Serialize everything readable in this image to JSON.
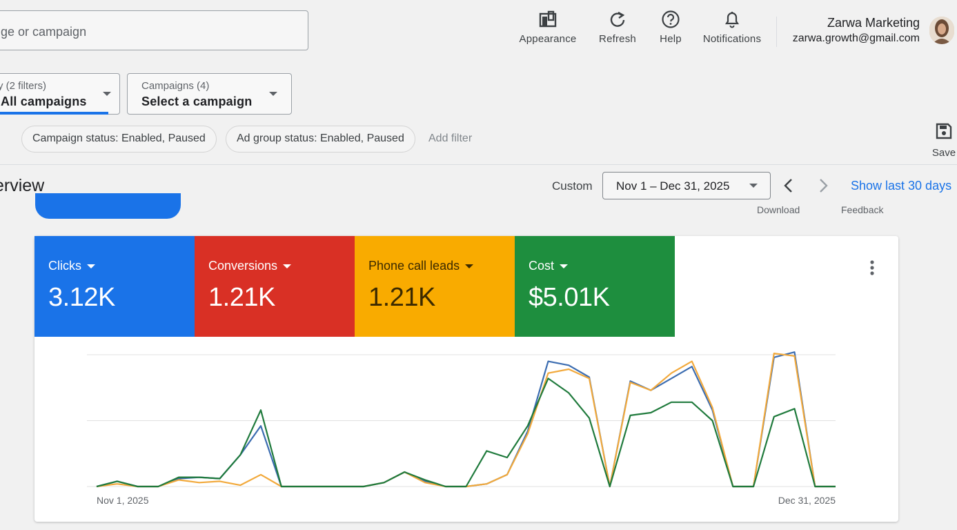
{
  "search": {
    "placeholder_visible": "ge or campaign"
  },
  "toolbar": [
    {
      "label": "Appearance",
      "icon": "appearance-icon"
    },
    {
      "label": "Refresh",
      "icon": "refresh-icon"
    },
    {
      "label": "Help",
      "icon": "help-icon"
    },
    {
      "label": "Notifications",
      "icon": "bell-icon"
    }
  ],
  "account": {
    "name": "Zarwa Marketing",
    "email": "zarwa.growth@gmail.com"
  },
  "filters": {
    "view": {
      "title": "y (2 filters)",
      "value": "All campaigns"
    },
    "campaigns": {
      "title": "Campaigns (4)",
      "value": "Select a campaign"
    },
    "chips": [
      "Campaign status: Enabled, Paused",
      "Ad group status: Enabled, Paused"
    ],
    "add_filter": "Add filter",
    "save": "Save"
  },
  "overview": {
    "title": "erview",
    "range_mode": "Custom",
    "date_range": "Nov 1 – Dec 31, 2025",
    "show_last": "Show last 30 days",
    "download": "Download",
    "feedback": "Feedback"
  },
  "metrics": [
    {
      "label": "Clicks",
      "value": "3.12K",
      "color": "#1a73e8"
    },
    {
      "label": "Conversions",
      "value": "1.21K",
      "color": "#d93025"
    },
    {
      "label": "Phone call leads",
      "value": "1.21K",
      "color": "#f9ab00"
    },
    {
      "label": "Cost",
      "value": "$5.01K",
      "color": "#1e8e3e"
    }
  ],
  "chart_data": {
    "type": "line",
    "x_start_label": "Nov 1, 2025",
    "x_end_label": "Dec 31, 2025",
    "grid": true,
    "ylim": [
      0,
      100
    ],
    "series": [
      {
        "color": "#3b6cb0",
        "values": [
          0,
          4,
          0,
          0,
          6,
          7,
          6,
          24,
          46,
          0,
          0,
          0,
          0,
          0,
          3,
          11,
          4,
          0,
          0,
          2,
          9,
          42,
          95,
          92,
          83,
          0,
          80,
          73,
          82,
          91,
          58,
          0,
          0,
          98,
          102,
          0,
          0
        ]
      },
      {
        "color": "#f2a93b",
        "values": [
          0,
          2,
          0,
          0,
          5,
          3,
          4,
          1,
          9,
          0,
          0,
          0,
          0,
          0,
          3,
          11,
          3,
          0,
          0,
          2,
          9,
          40,
          86,
          89,
          82,
          0,
          79,
          73,
          86,
          95,
          60,
          0,
          0,
          101,
          99,
          0,
          0
        ]
      },
      {
        "color": "#1f7a3c",
        "values": [
          0,
          4,
          0,
          0,
          7,
          7,
          6,
          24,
          58,
          0,
          0,
          0,
          0,
          0,
          3,
          11,
          5,
          0,
          0,
          27,
          22,
          46,
          82,
          71,
          52,
          0,
          54,
          56,
          64,
          64,
          50,
          0,
          0,
          53,
          59,
          0,
          0
        ]
      }
    ]
  }
}
